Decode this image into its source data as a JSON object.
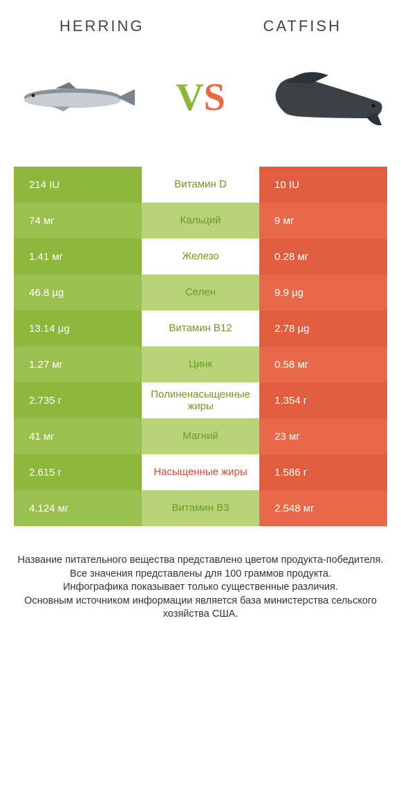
{
  "header": {
    "left": "Herring",
    "right": "Catfish"
  },
  "vs": {
    "v": "V",
    "s": "S"
  },
  "colors": {
    "green_a": "#8cb63c",
    "green_b": "#9cc04f",
    "green_pale": "#b7d47a",
    "orange_a": "#e05e3f",
    "orange_b": "#e8694a",
    "label_green": "#6f9a23",
    "label_orange": "#d24d2e",
    "white": "#ffffff"
  },
  "rows": [
    {
      "left": "214 IU",
      "label": "Витамин D",
      "right": "10 IU",
      "label_color": "label_green"
    },
    {
      "left": "74 мг",
      "label": "Кальций",
      "right": "9 мг",
      "label_color": "label_green"
    },
    {
      "left": "1.41 мг",
      "label": "Железо",
      "right": "0.28 мг",
      "label_color": "label_green"
    },
    {
      "left": "46.8 µg",
      "label": "Селен",
      "right": "9.9 µg",
      "label_color": "label_green"
    },
    {
      "left": "13.14 µg",
      "label": "Витамин B12",
      "right": "2.78 µg",
      "label_color": "label_green"
    },
    {
      "left": "1.27 мг",
      "label": "Цинк",
      "right": "0.58 мг",
      "label_color": "label_green"
    },
    {
      "left": "2.735 г",
      "label": "Полиненасыщенные жиры",
      "right": "1.354 г",
      "label_color": "label_green"
    },
    {
      "left": "41 мг",
      "label": "Магний",
      "right": "23 мг",
      "label_color": "label_green"
    },
    {
      "left": "2.615 г",
      "label": "Насыщенные жиры",
      "right": "1.586 г",
      "label_color": "label_orange"
    },
    {
      "left": "4.124 мг",
      "label": "Витамин B3",
      "right": "2.548 мг",
      "label_color": "label_green"
    }
  ],
  "footer": "Название питательного вещества представлено цветом продукта-победителя.\nВсе значения представлены для 100 граммов продукта.\nИнфографика показывает только существенные различия.\nОсновным источником информации является база министерства сельского хозяйства США."
}
